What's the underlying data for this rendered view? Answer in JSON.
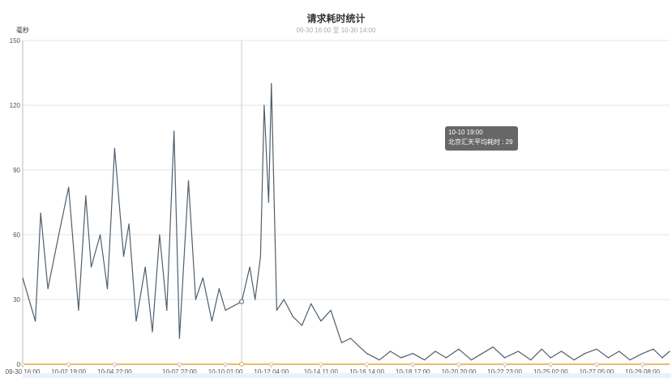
{
  "chart_data": {
    "type": "line",
    "title": "请求耗时统计",
    "subtitle": "09-30 16:00 至 10-30 14:00",
    "ylabel": "毫秒",
    "ylim": [
      0,
      150
    ],
    "yticks": [
      0,
      30,
      60,
      90,
      120,
      150
    ],
    "grid": true,
    "x_tick_labels": [
      "09-30 16:00",
      "10-02 19:00",
      "10-04 22:00",
      "10-07 22:00",
      "10-10 01:00",
      "10-12 04:00",
      "10-14 11:00",
      "10-16 14:00",
      "10-18 17:00",
      "10-20 20:00",
      "10-22 23:00",
      "10-25 02:00",
      "10-27 05:00",
      "10-29 08:00"
    ],
    "series": [
      {
        "name": "北京汇天平均耗时",
        "color": "#4f5f6c",
        "x": [
          "09-30 16:00",
          "10-01 06:00",
          "10-01 12:00",
          "10-01 20:00",
          "10-02 08:00",
          "10-02 19:00",
          "10-03 06:00",
          "10-03 14:00",
          "10-03 20:00",
          "10-04 06:00",
          "10-04 14:00",
          "10-04 22:00",
          "10-05 08:00",
          "10-05 14:00",
          "10-05 22:00",
          "10-06 08:00",
          "10-06 16:00",
          "10-07 00:00",
          "10-07 08:00",
          "10-07 16:00",
          "10-07 22:00",
          "10-08 08:00",
          "10-08 16:00",
          "10-09 00:00",
          "10-09 10:00",
          "10-09 18:00",
          "10-10 01:00",
          "10-10 19:00",
          "10-11 04:00",
          "10-11 10:00",
          "10-11 16:00",
          "10-11 20:00",
          "10-12 01:00",
          "10-12 04:00",
          "10-12 10:00",
          "10-12 18:00",
          "10-13 04:00",
          "10-13 14:00",
          "10-14 00:00",
          "10-14 11:00",
          "10-14 22:00",
          "10-15 10:00",
          "10-15 20:00",
          "10-16 06:00",
          "10-16 14:00",
          "10-17 04:00",
          "10-17 16:00",
          "10-18 04:00",
          "10-18 17:00",
          "10-19 06:00",
          "10-19 18:00",
          "10-20 06:00",
          "10-20 20:00",
          "10-21 10:00",
          "10-21 22:00",
          "10-22 10:00",
          "10-22 23:00",
          "10-23 14:00",
          "10-24 04:00",
          "10-24 16:00",
          "10-25 02:00",
          "10-25 14:00",
          "10-26 04:00",
          "10-26 16:00",
          "10-27 05:00",
          "10-27 18:00",
          "10-28 06:00",
          "10-28 18:00",
          "10-29 08:00",
          "10-29 20:00",
          "10-30 06:00",
          "10-30 14:00"
        ],
        "values": [
          40,
          20,
          70,
          35,
          60,
          82,
          25,
          78,
          45,
          60,
          35,
          100,
          50,
          65,
          20,
          45,
          15,
          60,
          25,
          108,
          12,
          85,
          30,
          40,
          20,
          35,
          25,
          29,
          45,
          30,
          50,
          120,
          75,
          130,
          25,
          30,
          22,
          18,
          28,
          20,
          25,
          10,
          12,
          8,
          5,
          2,
          6,
          3,
          5,
          2,
          6,
          3,
          7,
          2,
          5,
          8,
          3,
          6,
          2,
          7,
          3,
          6,
          2,
          5,
          7,
          3,
          6,
          2,
          5,
          7,
          3,
          6
        ]
      }
    ],
    "highlight": {
      "x": "10-10 19:00",
      "label": "10-10 19:00",
      "series_label": "北京汇天平均耗时",
      "value": 29
    }
  }
}
